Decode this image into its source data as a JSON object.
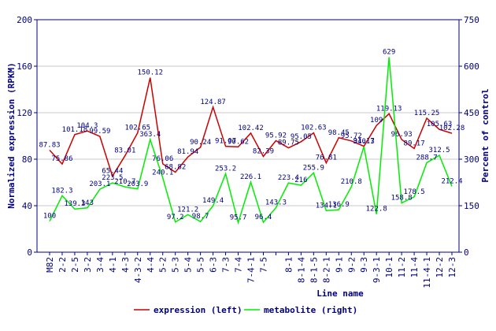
{
  "chart_data": {
    "type": "line",
    "categories": [
      "M82",
      "2-2",
      "2-5",
      "3-2",
      "3-4",
      "4-1",
      "4-3",
      "4-3-2",
      "4-4",
      "5-2",
      "5-3",
      "5-4",
      "5-5",
      "6-3",
      "7-3",
      "7-4",
      "7-4-1",
      "7-5",
      null,
      "8-1",
      "8-1-4",
      "8-1-5",
      "8-2-1",
      "9-1",
      "9-2",
      "9-3",
      "9-3-1",
      "10-1",
      "11-2",
      "11-4",
      "11-4-1",
      "12-2",
      "12-3"
    ],
    "series": [
      {
        "name": "expression (left)",
        "color": "#cc0000",
        "axis": "y",
        "values": [
          87.83,
          75.86,
          101.18,
          104.3,
          99.59,
          65.44,
          83.01,
          102.65,
          150.12,
          76.06,
          68.82,
          81.94,
          90.24,
          124.87,
          91.07,
          90.62,
          102.42,
          82.39,
          95.92,
          89.75,
          95.05,
          102.63,
          76.81,
          98.45,
          95.72,
          91.17,
          109,
          119.13,
          96.93,
          89.17,
          115.25,
          105.63,
          102.28
        ]
      },
      {
        "name": "metabolite (right)",
        "color": "#00ee00",
        "axis": "y2",
        "values": [
          100,
          182.3,
          139.3,
          143,
          203.1,
          223.5,
          210.7,
          203.9,
          363.4,
          240.1,
          97.2,
          121.2,
          98.7,
          149.4,
          253.2,
          95.7,
          226.1,
          96.4,
          143.3,
          223.4,
          216,
          255.9,
          134.1,
          136.9,
          210.8,
          340.3,
          122.8,
          629,
          158.8,
          178.5,
          288.7,
          312.5,
          212.4
        ]
      }
    ],
    "y_label": "Normalized expression (RPKM)",
    "y2_label": "Percent of control",
    "x_label": "Line name",
    "ylim": [
      0,
      200
    ],
    "yticks": [
      0,
      40,
      80,
      120,
      160,
      200
    ],
    "y2lim": [
      0,
      750
    ],
    "y2ticks": [
      0,
      150,
      300,
      450,
      600,
      750
    ],
    "grid": true
  }
}
